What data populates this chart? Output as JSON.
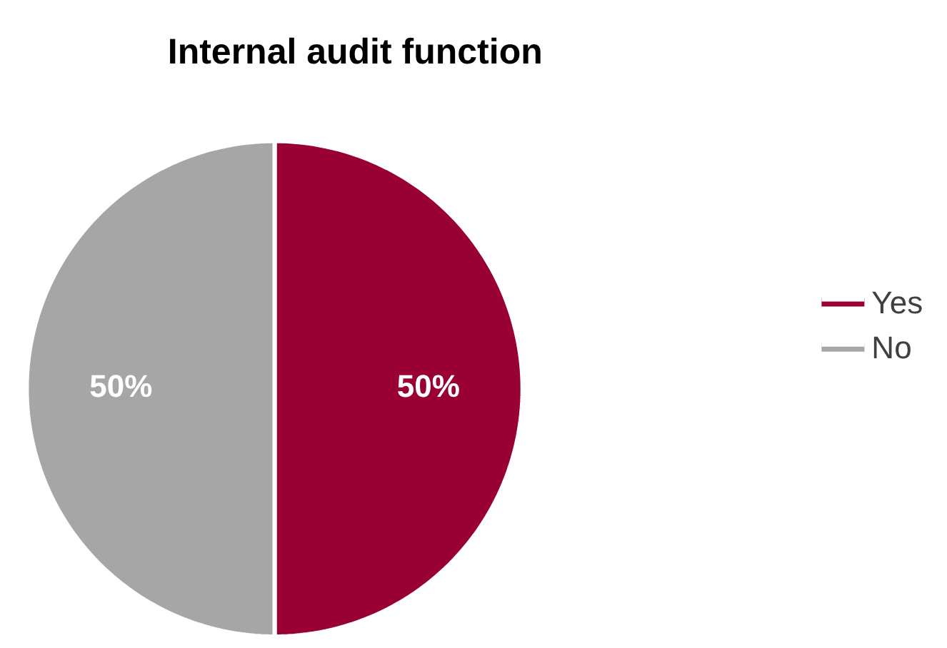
{
  "chart_data": {
    "type": "pie",
    "title": "Internal audit function",
    "categories": [
      "Yes",
      "No"
    ],
    "values": [
      50,
      50
    ],
    "colors": [
      "#990033",
      "#a6a6a6"
    ],
    "value_labels": [
      "50%",
      "50%"
    ],
    "legend": "right"
  }
}
